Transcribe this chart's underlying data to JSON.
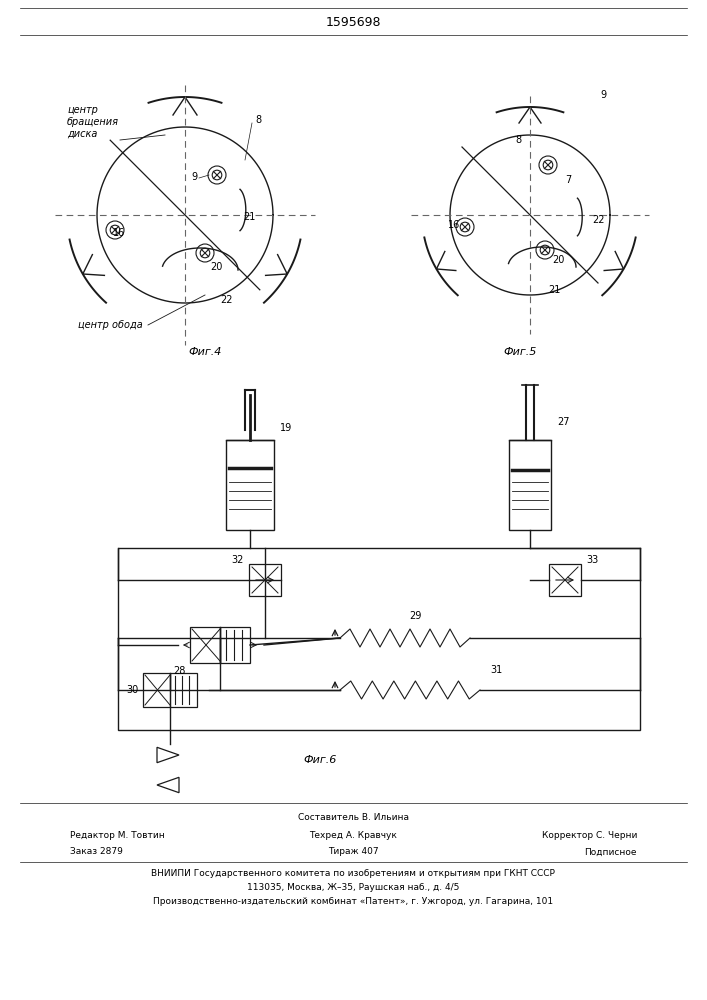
{
  "title": "1595698",
  "fig4_label": "Фиг.4",
  "fig5_label": "Фиг.5",
  "fig6_label": "Фиг.6",
  "text_center_rotation": "центр\nбращения\nдиска",
  "text_center_rim": "центр обода",
  "footer_line1": "Составитель В. Ильина",
  "footer_line2_left": "Редактор М. Товтин",
  "footer_line2_mid": "Техред А. Кравчук",
  "footer_line2_right": "Корректор С. Черни",
  "footer_line3_left": "Заказ 2879",
  "footer_line3_mid": "Тираж 407",
  "footer_line3_right": "Подписное",
  "footer_line4": "ВНИИПИ Государственного комитета по изобретениям и открытиям при ГКНТ СССР",
  "footer_line5": "113035, Москва, Ж–35, Раушская наб., д. 4/5",
  "footer_line6": "Производственно-издательский комбинат «Патент», г. Ужгород, ул. Гагарина, 101",
  "bg_color": "#ffffff",
  "line_color": "#1a1a1a"
}
